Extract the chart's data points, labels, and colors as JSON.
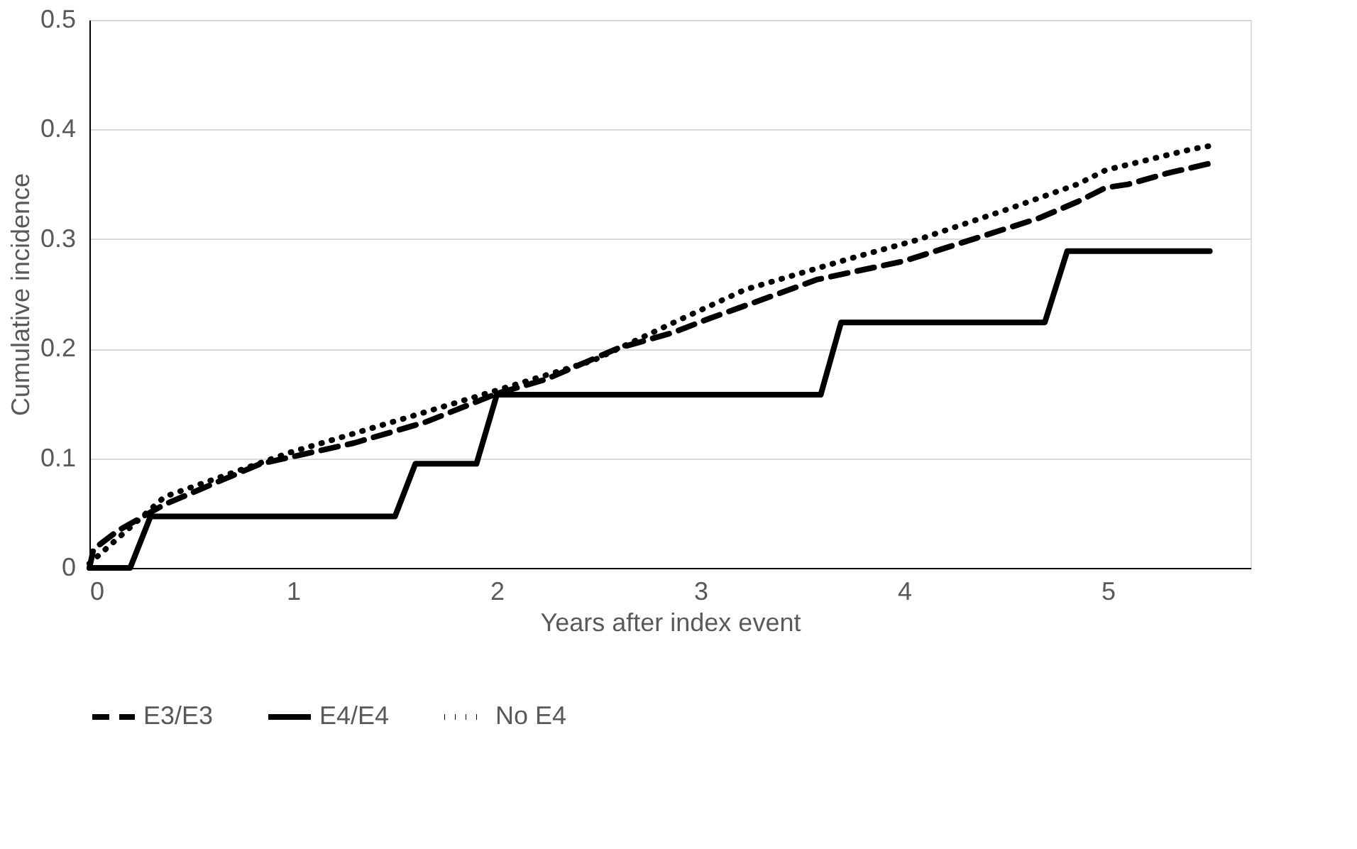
{
  "chart_data": {
    "type": "line",
    "xlabel": "Years after index event",
    "ylabel": "Cumulative incidence",
    "xlim": [
      0,
      5.7
    ],
    "xticks": [
      0,
      1,
      2,
      3,
      4,
      5
    ],
    "ylim": [
      0,
      0.5
    ],
    "yticks": [
      0,
      0.1,
      0.2,
      0.3,
      0.4,
      0.5
    ],
    "grid": "y",
    "legend": "bottom",
    "marker": "none",
    "series": [
      {
        "name": "E3/E3",
        "color": "#000000",
        "line_style": "dashed",
        "x": [
          0,
          0.02,
          0.14,
          0.37,
          0.84,
          1.3,
          1.65,
          2.0,
          2.24,
          2.59,
          2.87,
          3.05,
          3.38,
          3.57,
          4.0,
          4.66,
          4.85,
          4.99,
          5.1,
          5.29,
          5.5
        ],
        "values": [
          0,
          0.017,
          0.034,
          0.058,
          0.095,
          0.114,
          0.133,
          0.159,
          0.172,
          0.2,
          0.215,
          0.228,
          0.25,
          0.263,
          0.28,
          0.319,
          0.334,
          0.347,
          0.35,
          0.36,
          0.369
        ]
      },
      {
        "name": "E4/E4",
        "color": "#000000",
        "line_style": "solid",
        "x": [
          0,
          0.2,
          0.3,
          1.5,
          1.6,
          1.9,
          2.0,
          3.59,
          3.69,
          4.69,
          4.8,
          5.5
        ],
        "values": [
          0,
          0,
          0.047,
          0.047,
          0.095,
          0.095,
          0.158,
          0.158,
          0.224,
          0.224,
          0.289,
          0.289
        ]
      },
      {
        "name": "No E4",
        "color": "#000000",
        "line_style": "dotted",
        "x": [
          0,
          0.37,
          0.98,
          1.54,
          2.0,
          2.47,
          2.87,
          3.22,
          3.73,
          4.06,
          4.52,
          4.85,
          4.99,
          5.41,
          5.5
        ],
        "values": [
          0.004,
          0.065,
          0.105,
          0.136,
          0.162,
          0.189,
          0.224,
          0.254,
          0.282,
          0.299,
          0.328,
          0.35,
          0.363,
          0.382,
          0.385
        ]
      }
    ]
  }
}
